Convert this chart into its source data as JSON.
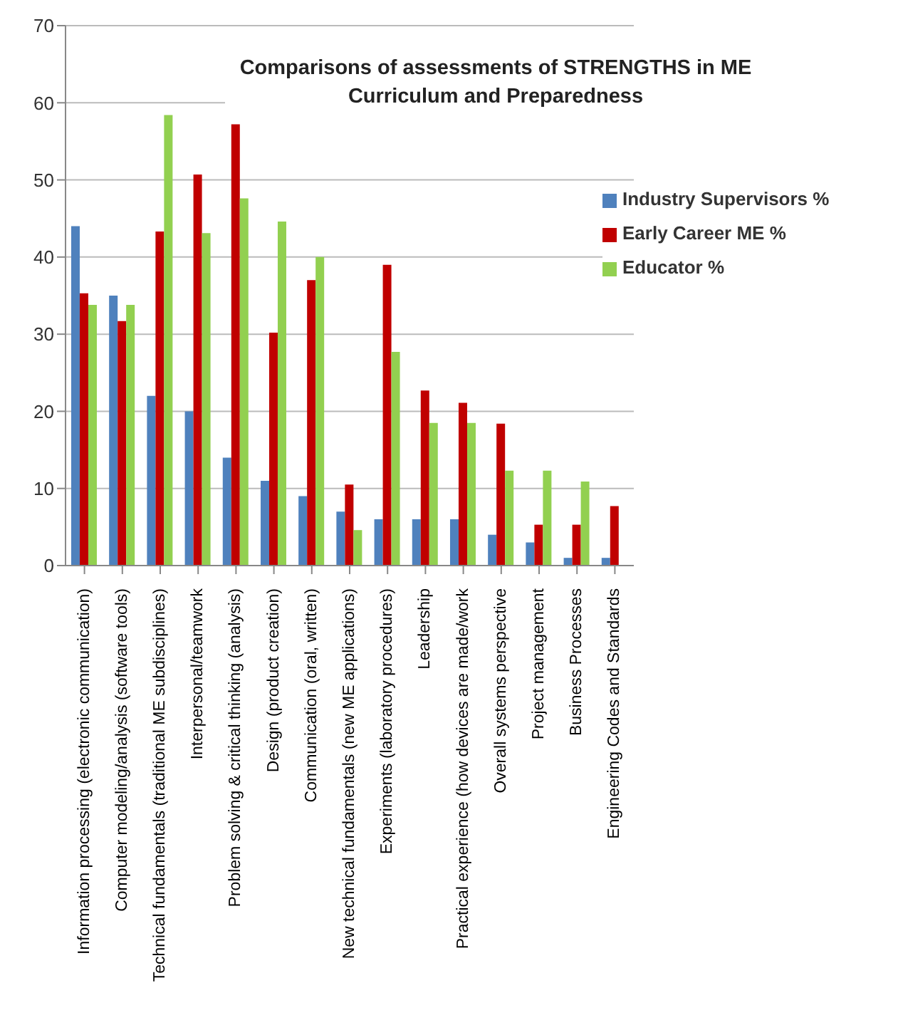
{
  "chart_data": {
    "type": "bar",
    "title": "Comparisons of assessments of STRENGTHS in ME Curriculum and Preparedness",
    "categories": [
      "Information processing (electronic communication)",
      "Computer modeling/analysis (software tools)",
      "Technical fundamentals (traditional ME subdisciplines)",
      "Interpersonal/teamwork",
      "Problem solving & critical thinking (analysis)",
      "Design (product creation)",
      "Communication (oral, written)",
      "New technical fundamentals (new ME applications)",
      "Experiments (laboratory procedures)",
      "Leadership",
      "Practical experience (how devices are made/work",
      "Overall systems perspective",
      "Project management",
      "Business Processes",
      "Engineering Codes and Standards"
    ],
    "series": [
      {
        "name": "Industry Supervisors %",
        "color": "#4f81bd",
        "values": [
          44,
          35,
          22,
          20,
          14,
          11,
          9,
          7,
          6,
          6,
          6,
          4,
          3,
          1,
          1
        ]
      },
      {
        "name": "Early Career ME %",
        "color": "#c00000",
        "values": [
          35.3,
          31.7,
          43.3,
          50.7,
          57.2,
          30.2,
          37,
          10.5,
          39,
          22.7,
          21.1,
          18.4,
          5.3,
          5.3,
          7.7
        ]
      },
      {
        "name": "Educator %",
        "color": "#92d050",
        "values": [
          33.8,
          33.8,
          58.4,
          43.1,
          47.6,
          44.6,
          40,
          4.6,
          27.7,
          18.5,
          18.5,
          12.3,
          12.3,
          10.9,
          null
        ]
      }
    ],
    "ylim": [
      0,
      70
    ],
    "yticks": [
      0,
      10,
      20,
      30,
      40,
      50,
      60,
      70
    ],
    "grid": "y",
    "legend": "top right"
  }
}
